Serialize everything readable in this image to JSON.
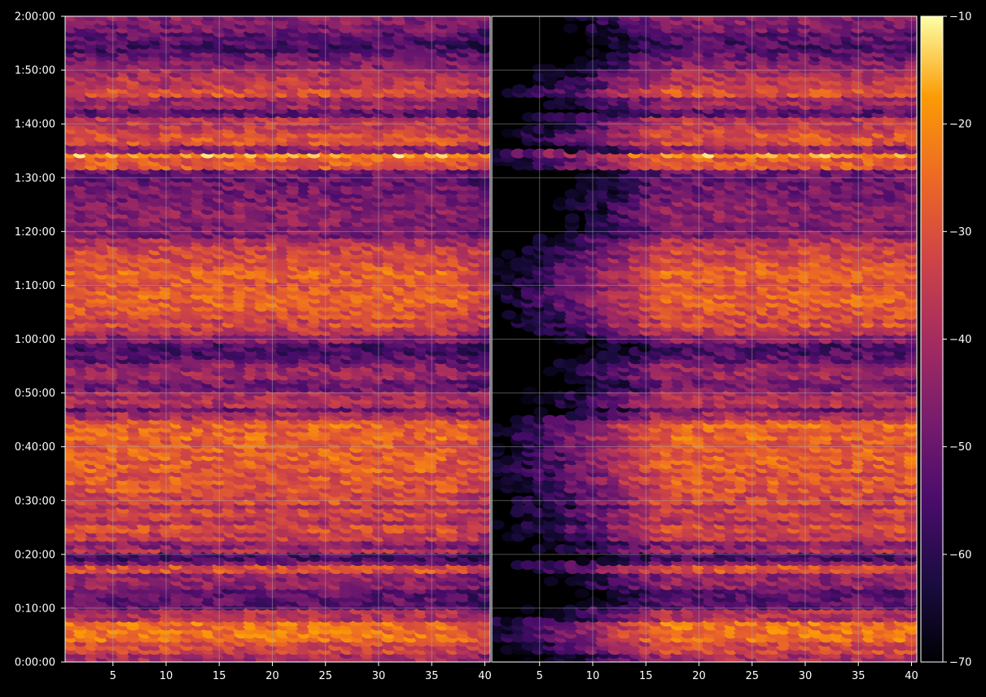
{
  "chart_data": {
    "type": "heatmap",
    "title": "",
    "xlabel": "",
    "ylabel": "",
    "grid": true,
    "colormap": "inferno",
    "panels": [
      {
        "name": "",
        "xlim": [
          1,
          40
        ],
        "x_ticks": [
          5,
          10,
          15,
          20,
          25,
          30,
          35,
          40
        ],
        "x_tick_labels": [
          "5",
          "10",
          "15",
          "20",
          "25",
          "30",
          "35",
          "40"
        ]
      },
      {
        "name": "",
        "xlim": [
          1,
          40
        ],
        "x_ticks": [
          5,
          10,
          15,
          20,
          25,
          30,
          35,
          40
        ],
        "x_tick_labels": [
          "5",
          "10",
          "15",
          "20",
          "25",
          "30",
          "35",
          "40"
        ]
      }
    ],
    "y_range_seconds": [
      0,
      7200
    ],
    "y_ticks_seconds": [
      0,
      600,
      1200,
      1800,
      2400,
      3000,
      3600,
      4200,
      4800,
      5400,
      6000,
      6600,
      7200
    ],
    "y_tick_labels": [
      "0:00:00",
      "0:10:00",
      "0:20:00",
      "0:30:00",
      "0:40:00",
      "0:50:00",
      "1:00:00",
      "1:10:00",
      "1:20:00",
      "1:30:00",
      "1:40:00",
      "1:50:00",
      "2:00:00"
    ],
    "colorbar": {
      "range": [
        -70,
        -10
      ],
      "ticks": [
        -70,
        -60,
        -50,
        -40,
        -30,
        -20,
        -10
      ],
      "tick_labels": [
        "−70",
        "−60",
        "−50",
        "−40",
        "−30",
        "−20",
        "−10"
      ]
    },
    "bands_seconds_to_db": [
      [
        60,
        -40
      ],
      [
        140,
        -32
      ],
      [
        360,
        -24
      ],
      [
        540,
        -38
      ],
      [
        690,
        -52
      ],
      [
        1010,
        -44
      ],
      [
        1050,
        -30
      ],
      [
        1110,
        -48
      ],
      [
        1200,
        -55
      ],
      [
        1260,
        -38
      ],
      [
        1320,
        -45
      ],
      [
        1380,
        -34
      ],
      [
        1440,
        -36
      ],
      [
        1500,
        -31
      ],
      [
        1560,
        -38
      ],
      [
        1620,
        -35
      ],
      [
        1680,
        -32
      ],
      [
        1740,
        -38
      ],
      [
        1800,
        -30
      ],
      [
        1860,
        -33
      ],
      [
        1920,
        -29
      ],
      [
        1980,
        -31
      ],
      [
        2040,
        -28
      ],
      [
        2100,
        -30
      ],
      [
        2160,
        -27
      ],
      [
        2220,
        -28
      ],
      [
        2280,
        -26
      ],
      [
        2340,
        -28
      ],
      [
        2400,
        -27
      ],
      [
        2460,
        -28
      ],
      [
        2520,
        -25
      ],
      [
        2580,
        -27
      ],
      [
        2640,
        -25
      ],
      [
        2700,
        -30
      ],
      [
        2760,
        -40
      ],
      [
        2820,
        -50
      ],
      [
        2880,
        -38
      ],
      [
        2990,
        -40
      ],
      [
        3120,
        -48
      ],
      [
        3220,
        -42
      ],
      [
        3300,
        -44
      ],
      [
        3370,
        -52
      ],
      [
        3480,
        -55
      ],
      [
        3650,
        -45
      ],
      [
        3720,
        -36
      ],
      [
        3780,
        -30
      ],
      [
        3830,
        -34
      ],
      [
        3900,
        -30
      ],
      [
        3960,
        -29
      ],
      [
        4020,
        -27
      ],
      [
        4080,
        -26
      ],
      [
        4140,
        -27
      ],
      [
        4200,
        -29
      ],
      [
        4300,
        -28
      ],
      [
        4350,
        -26
      ],
      [
        4420,
        -29
      ],
      [
        4500,
        -31
      ],
      [
        4560,
        -32
      ],
      [
        4620,
        -34
      ],
      [
        4700,
        -38
      ],
      [
        4780,
        -47
      ],
      [
        5020,
        -45
      ],
      [
        5250,
        -48
      ],
      [
        5400,
        -50
      ],
      [
        5600,
        -28
      ],
      [
        5660,
        -18
      ],
      [
        5740,
        -44
      ],
      [
        5860,
        -30
      ],
      [
        5940,
        -33
      ],
      [
        6020,
        -36
      ],
      [
        6140,
        -52
      ],
      [
        6260,
        -42
      ],
      [
        6340,
        -30
      ],
      [
        6480,
        -36
      ],
      [
        6600,
        -40
      ],
      [
        6690,
        -45
      ],
      [
        6770,
        -50
      ],
      [
        6900,
        -55
      ],
      [
        7000,
        -52
      ],
      [
        7100,
        -48
      ],
      [
        7200,
        -45
      ]
    ]
  }
}
